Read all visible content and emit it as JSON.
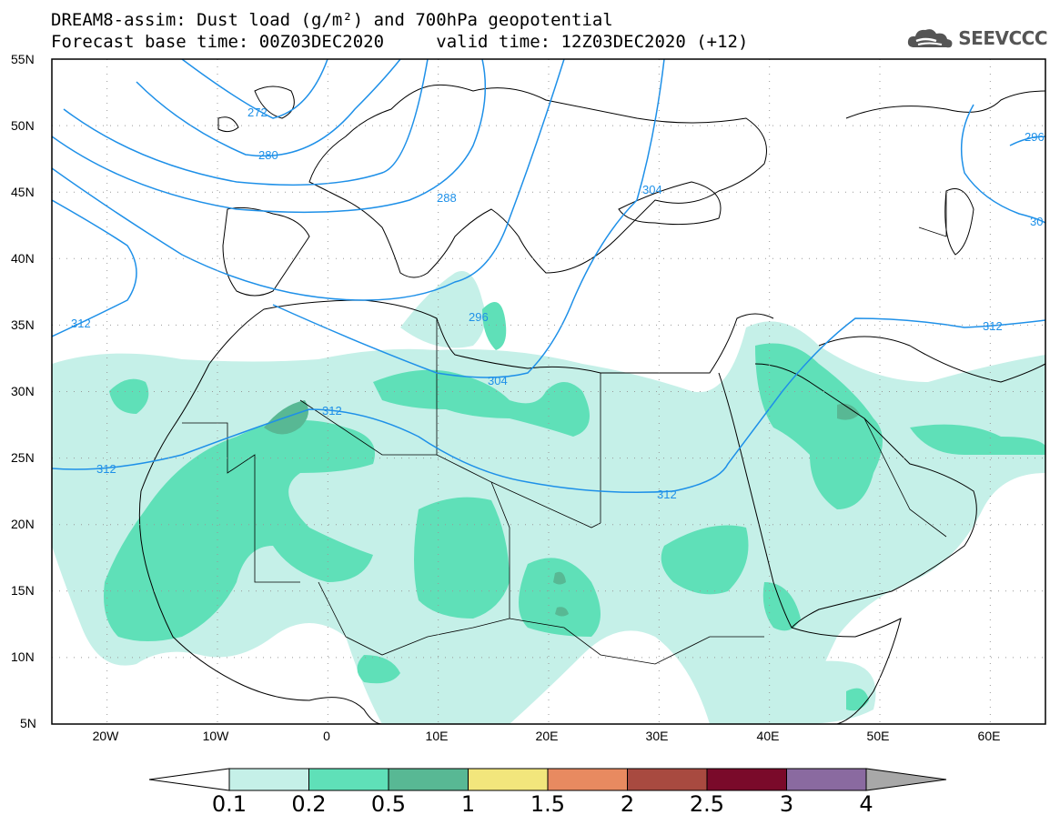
{
  "header": {
    "title_line1": "DREAM8-assim: Dust load (g/m²) and 700hPa geopotential",
    "base_time_label": "Forecast base time: 00Z03DEC2020",
    "valid_time_label": "valid time: 12Z03DEC2020 (+12)",
    "logo_text": "SEEVCCC",
    "logo_icon": "cloud-logo-icon"
  },
  "axes": {
    "lat_labels": [
      "55N",
      "50N",
      "45N",
      "40N",
      "35N",
      "30N",
      "25N",
      "20N",
      "15N",
      "10N",
      "5N"
    ],
    "lon_labels": [
      "20W",
      "10W",
      "0",
      "10E",
      "20E",
      "30E",
      "40E",
      "50E",
      "60E"
    ]
  },
  "contours": {
    "color": "#1e90e8",
    "labels": [
      "272",
      "280",
      "288",
      "296",
      "304",
      "312",
      "312",
      "312",
      "312",
      "296",
      "304",
      "30"
    ]
  },
  "colorbar": {
    "levels": [
      "0.1",
      "0.2",
      "0.5",
      "1",
      "1.5",
      "2",
      "2.5",
      "3",
      "4"
    ],
    "colors": [
      "#c5f0e8",
      "#5fe0b8",
      "#58b894",
      "#f2e67c",
      "#e88a60",
      "#a84a40",
      "#7a0a2a",
      "#8a6aa0",
      "#a8a8a8"
    ]
  },
  "map": {
    "lat_range": [
      5,
      55
    ],
    "lon_range": [
      -25,
      65
    ],
    "grid": "dotted",
    "land_border_color": "#000000"
  }
}
